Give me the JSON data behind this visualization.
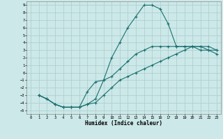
{
  "title": "",
  "xlabel": "Humidex (Indice chaleur)",
  "ylabel": "",
  "bg_color": "#cce8e8",
  "grid_color": "#aacccc",
  "line_color": "#1a7070",
  "xlim": [
    -0.5,
    23.5
  ],
  "ylim": [
    -5.5,
    9.5
  ],
  "xticks": [
    0,
    1,
    2,
    3,
    4,
    5,
    6,
    7,
    8,
    9,
    10,
    11,
    12,
    13,
    14,
    15,
    16,
    17,
    18,
    19,
    20,
    21,
    22,
    23
  ],
  "yticks": [
    -5,
    -4,
    -3,
    -2,
    -1,
    0,
    1,
    2,
    3,
    4,
    5,
    6,
    7,
    8,
    9
  ],
  "line1_x": [
    1,
    2,
    3,
    4,
    5,
    6,
    7,
    8,
    9,
    10,
    11,
    12,
    13,
    14,
    15,
    16,
    17,
    18,
    19,
    20,
    21,
    22,
    23
  ],
  "line1_y": [
    -3,
    -3.5,
    -4.2,
    -4.6,
    -4.6,
    -4.6,
    -2.5,
    -1.2,
    -1,
    2,
    4,
    6,
    7.5,
    9,
    9,
    8.5,
    6.5,
    3.5,
    3.5,
    3.5,
    3,
    3,
    3
  ],
  "line2_x": [
    1,
    2,
    3,
    4,
    5,
    6,
    7,
    8,
    9,
    10,
    11,
    12,
    13,
    14,
    15,
    16,
    17,
    18,
    19,
    20,
    21,
    22,
    23
  ],
  "line2_y": [
    -3,
    -3.5,
    -4.2,
    -4.6,
    -4.6,
    -4.6,
    -4.2,
    -3.5,
    -1,
    -0.5,
    0.5,
    1.5,
    2.5,
    3,
    3.5,
    3.5,
    3.5,
    3.5,
    3.5,
    3.5,
    3.5,
    3,
    2.5
  ],
  "line3_x": [
    1,
    2,
    3,
    4,
    5,
    6,
    7,
    8,
    9,
    10,
    11,
    12,
    13,
    14,
    15,
    16,
    17,
    18,
    19,
    20,
    21,
    22,
    23
  ],
  "line3_y": [
    -3,
    -3.5,
    -4.2,
    -4.6,
    -4.6,
    -4.6,
    -4.2,
    -4.0,
    -3,
    -2,
    -1,
    -0.5,
    0,
    0.5,
    1,
    1.5,
    2,
    2.5,
    3,
    3.5,
    3.5,
    3.5,
    3
  ]
}
